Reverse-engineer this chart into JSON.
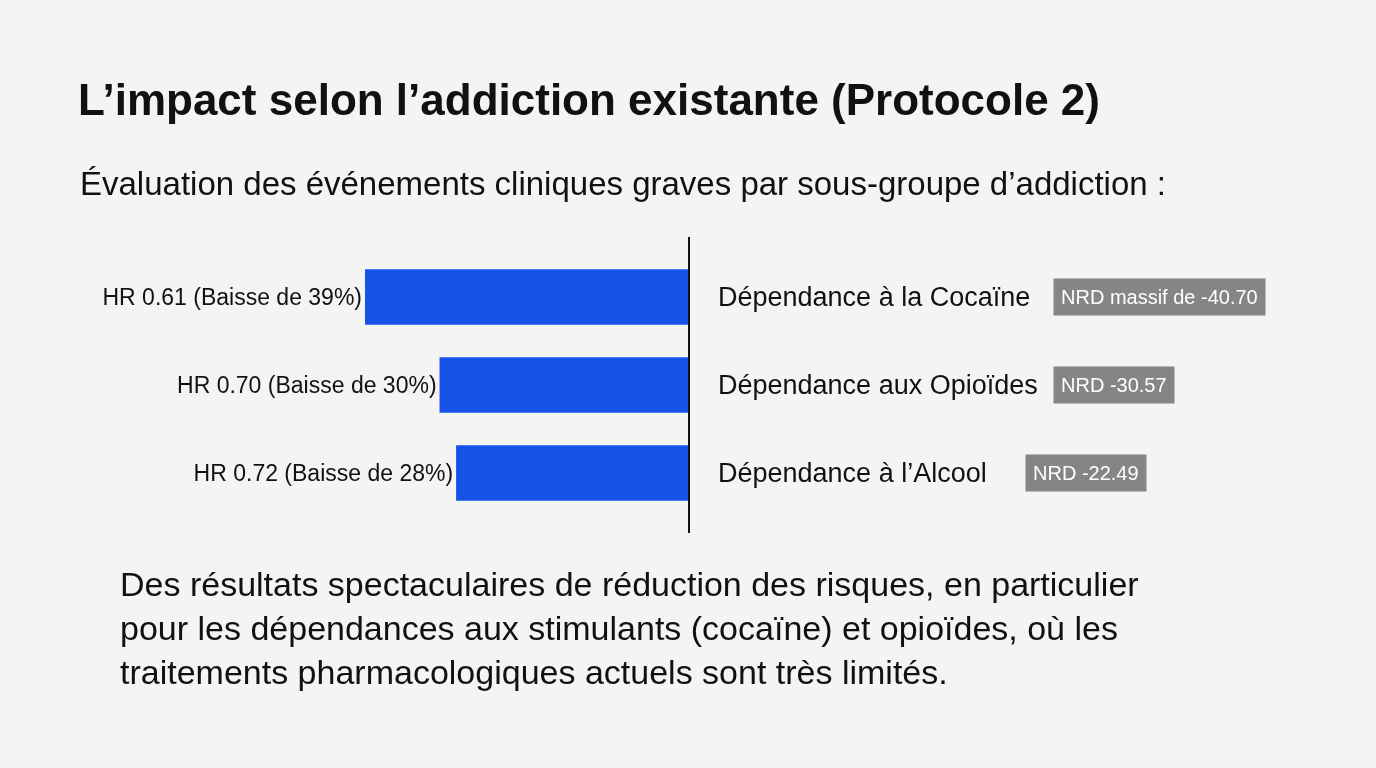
{
  "chart_data": {
    "type": "bar",
    "orientation": "horizontal",
    "title": "L’impact selon l’addiction existante (Protocole 2)",
    "subtitle": "Évaluation des événements cliniques graves par sous-groupe d’addiction :",
    "categories": [
      "Dépendance à la Cocaïne",
      "Dépendance aux Opioïdes",
      "Dépendance à l’Alcool"
    ],
    "values": [
      39,
      30,
      28
    ],
    "value_labels": [
      "HR 0.61 (Baisse de 39%)",
      "HR 0.70 (Baisse de 30%)",
      "HR 0.72 (Baisse de 28%)"
    ],
    "color": "#1652e6",
    "annotations": [
      "NRD massif de -40.70",
      "NRD -30.57",
      "NRD -22.49",
      "Des résultats spectaculaires de réduction des risques, en particulier pour les dépendances aux stimulants (cocaïne) et opioïdes, où les traitements pharmacologiques actuels sont très limités."
    ],
    "grid": false
  }
}
